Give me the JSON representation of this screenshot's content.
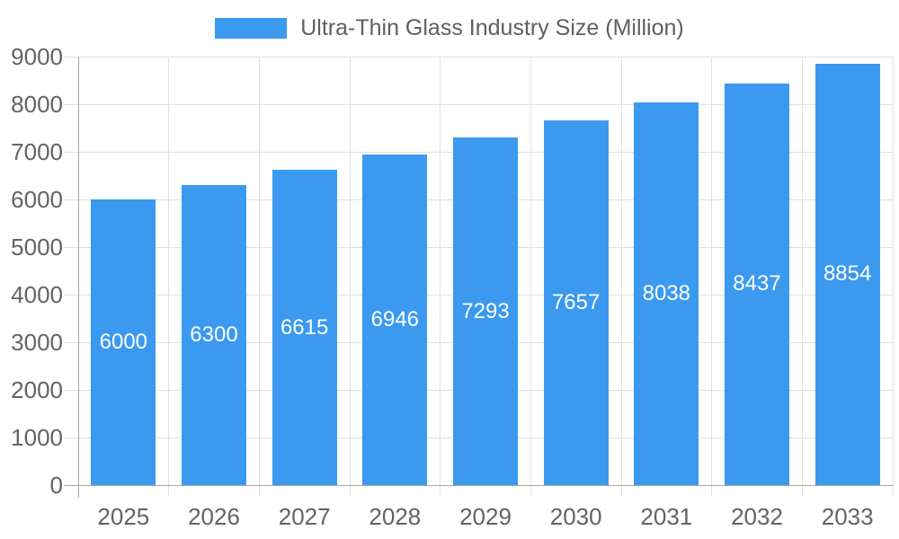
{
  "chart_data": {
    "type": "bar",
    "title": "Ultra-Thin Glass Industry Size (Million)",
    "legend_position": "top-center",
    "categories": [
      "2025",
      "2026",
      "2027",
      "2028",
      "2029",
      "2030",
      "2031",
      "2032",
      "2033"
    ],
    "series": [
      {
        "name": "Ultra-Thin Glass Industry Size (Million)",
        "values": [
          6000,
          6300,
          6615,
          6946,
          7293,
          7657,
          8038,
          8437,
          8854
        ]
      }
    ],
    "xlabel": "",
    "ylabel": "",
    "ylim": [
      0,
      9000
    ],
    "ytick_step": 1000,
    "yticks": [
      0,
      1000,
      2000,
      3000,
      4000,
      5000,
      6000,
      7000,
      8000,
      9000
    ],
    "grid": "horizontal-and-vertical",
    "value_labels": "white, centered inside bars",
    "colors": {
      "bar": "#3B99F0",
      "grid": "#E0E0E0",
      "axis": "#A6A6A6",
      "axis_text": "#636363",
      "legend_text": "#5F5F5F",
      "value_text": "#FFFFFF",
      "background": "#FFFFFF"
    }
  }
}
